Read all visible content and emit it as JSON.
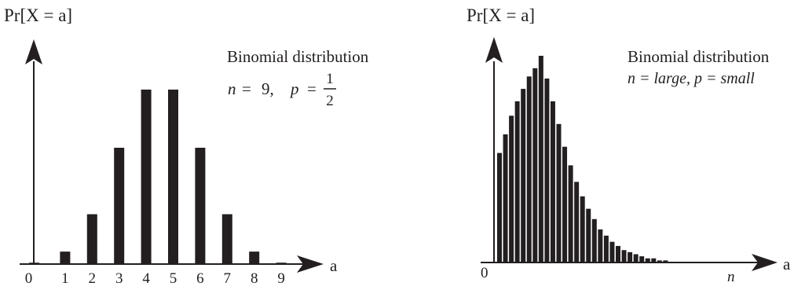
{
  "chart_data": [
    {
      "type": "bar",
      "ylabel": "Pr[X = a]",
      "xlabel": "a",
      "legend": {
        "line1": "Binomial distribution",
        "params": {
          "n_label": "n",
          "eq1": "=",
          "n_value": "9,",
          "p_label": "p",
          "eq2": "=",
          "p_num": "1",
          "p_den": "2"
        }
      },
      "categories": [
        "0",
        "1",
        "2",
        "3",
        "4",
        "5",
        "6",
        "7",
        "8",
        "9"
      ],
      "values": [
        1,
        9,
        36,
        84,
        126,
        126,
        84,
        36,
        9,
        1
      ],
      "ylim": [
        0,
        126
      ],
      "axis_tick_label_origin": "0"
    },
    {
      "type": "bar",
      "ylabel": "Pr[X = a]",
      "xlabel": "a",
      "x_end_label": "n",
      "legend": {
        "line1": "Binomial distribution",
        "line2": "n = large, p = small"
      },
      "origin_label": "0",
      "values": [
        0.53,
        0.62,
        0.71,
        0.78,
        0.84,
        0.9,
        0.94,
        1.0,
        0.89,
        0.78,
        0.67,
        0.56,
        0.47,
        0.39,
        0.32,
        0.26,
        0.21,
        0.16,
        0.13,
        0.1,
        0.08,
        0.06,
        0.05,
        0.04,
        0.03,
        0.02,
        0.02,
        0.01,
        0.01
      ],
      "ylim": [
        0,
        1.0
      ]
    }
  ]
}
